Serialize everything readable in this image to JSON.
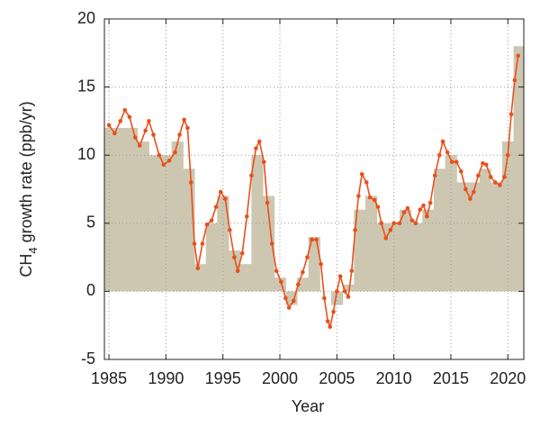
{
  "chart_data": {
    "type": "bar",
    "xlabel": "Year",
    "ylabel": "CH4 growth rate (ppb/yr)",
    "xlim": [
      1984.6,
      2021.4
    ],
    "ylim": [
      -5,
      20
    ],
    "xticks": [
      1985,
      1990,
      1995,
      2000,
      2005,
      2010,
      2015,
      2020
    ],
    "yticks": [
      -5,
      0,
      5,
      10,
      15,
      20
    ],
    "grid": true,
    "color": "#cdc7b1",
    "x": [
      1985,
      1986,
      1987,
      1988,
      1989,
      1990,
      1991,
      1992,
      1993,
      1994,
      1995,
      1996,
      1997,
      1998,
      1999,
      2000,
      2001,
      2002,
      2003,
      2004,
      2005,
      2006,
      2007,
      2008,
      2009,
      2010,
      2011,
      2012,
      2013,
      2014,
      2015,
      2016,
      2017,
      2018,
      2019,
      2020,
      2021
    ],
    "values": [
      12,
      12,
      12,
      11,
      10,
      10,
      11,
      9,
      2,
      5,
      7,
      3,
      2,
      10,
      7,
      1,
      -1,
      1,
      4,
      0,
      -1,
      0.5,
      6,
      7,
      5,
      5,
      6,
      5,
      6,
      9,
      10,
      8,
      8,
      9,
      8,
      11,
      18
    ],
    "line": {
      "color": "#e8501c",
      "x": [
        1985.0,
        1985.5,
        1986.0,
        1986.4,
        1986.8,
        1987.3,
        1987.7,
        1988.2,
        1988.5,
        1988.9,
        1989.4,
        1989.8,
        1990.3,
        1990.8,
        1991.2,
        1991.6,
        1991.9,
        1992.2,
        1992.5,
        1992.8,
        1993.2,
        1993.6,
        1994.0,
        1994.4,
        1994.8,
        1995.2,
        1995.6,
        1996.0,
        1996.3,
        1996.7,
        1997.1,
        1997.5,
        1997.9,
        1998.2,
        1998.6,
        1998.9,
        1999.3,
        1999.7,
        2000.1,
        2000.5,
        2000.8,
        2001.2,
        2001.6,
        2002.0,
        2002.4,
        2002.8,
        2003.2,
        2003.6,
        2003.9,
        2004.2,
        2004.4,
        2004.7,
        2005.0,
        2005.3,
        2005.7,
        2006.0,
        2006.3,
        2006.6,
        2006.9,
        2007.2,
        2007.6,
        2007.9,
        2008.3,
        2008.6,
        2008.9,
        2009.3,
        2009.7,
        2010.0,
        2010.5,
        2010.9,
        2011.2,
        2011.6,
        2011.9,
        2012.3,
        2012.6,
        2012.9,
        2013.2,
        2013.6,
        2014.0,
        2014.3,
        2014.7,
        2015.1,
        2015.5,
        2015.9,
        2016.3,
        2016.7,
        2017.0,
        2017.4,
        2017.8,
        2018.1,
        2018.5,
        2018.9,
        2019.3,
        2019.7,
        2020.0,
        2020.3,
        2020.6,
        2020.9
      ],
      "values": [
        12.2,
        11.6,
        12.5,
        13.3,
        12.8,
        11.3,
        10.7,
        11.8,
        12.5,
        11.5,
        10.0,
        9.3,
        9.6,
        10.2,
        11.5,
        12.6,
        12.0,
        8.0,
        3.5,
        1.7,
        3.5,
        4.9,
        5.2,
        6.2,
        7.3,
        6.8,
        4.5,
        2.5,
        1.5,
        2.8,
        5.5,
        8.5,
        10.5,
        11.0,
        9.5,
        6.5,
        3.5,
        1.5,
        0.7,
        -0.5,
        -1.2,
        -0.7,
        0.5,
        1.4,
        2.5,
        3.8,
        3.8,
        2.0,
        -0.5,
        -2.2,
        -2.6,
        -1.5,
        0.0,
        1.1,
        0.0,
        -0.4,
        1.5,
        4.5,
        7.0,
        8.6,
        8.0,
        6.9,
        6.7,
        6.2,
        5.0,
        3.9,
        4.5,
        5.0,
        5.0,
        5.8,
        6.1,
        5.2,
        5.0,
        6.0,
        6.3,
        5.5,
        6.5,
        8.5,
        10.0,
        11.0,
        10.2,
        9.5,
        9.5,
        8.8,
        7.5,
        6.8,
        7.3,
        8.5,
        9.4,
        9.3,
        8.4,
        8.0,
        7.8,
        8.4,
        10.0,
        13.0,
        15.5,
        17.3
      ]
    }
  }
}
